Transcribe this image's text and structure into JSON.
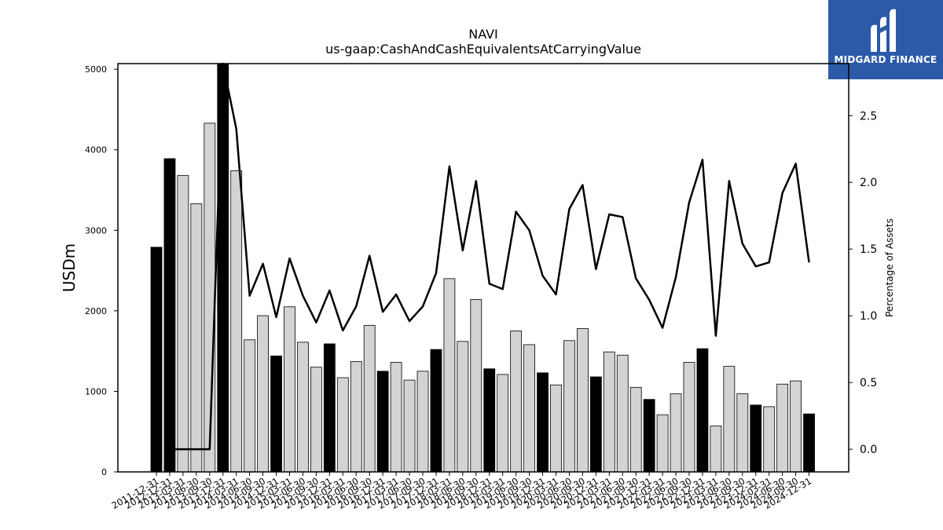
{
  "brand": {
    "name": "MIDGARD FINANCE",
    "color": "#2b5aa8",
    "icon": "midgard-logo-icon"
  },
  "chart_data": {
    "type": "bar",
    "title": "NAVI",
    "subtitle": "us-gaap:CashAndCashEquivalentsAtCarryingValue",
    "ylabel": "USDm",
    "y2label": "Percentage of Assets",
    "ylim": [
      0,
      5070
    ],
    "y2lim": [
      -0.17,
      2.89
    ],
    "yticks": [
      0,
      1000,
      2000,
      3000,
      4000,
      5000
    ],
    "y2ticks": [
      0.0,
      0.5,
      1.0,
      1.5,
      2.0,
      2.5
    ],
    "colors": {
      "q4": "#000000",
      "other": "#d3d3d3",
      "line": "#000000"
    },
    "categories": [
      "2011-12-31",
      "2012-12-31",
      "2013-03-31",
      "2013-06-30",
      "2013-09-30",
      "2013-12-31",
      "2014-03-31",
      "2014-06-30",
      "2014-09-30",
      "2014-12-31",
      "2015-03-31",
      "2015-06-30",
      "2015-09-30",
      "2015-12-31",
      "2016-03-31",
      "2016-06-30",
      "2016-09-30",
      "2016-12-31",
      "2017-03-31",
      "2017-06-30",
      "2017-09-30",
      "2017-12-31",
      "2018-03-31",
      "2018-06-30",
      "2018-09-30",
      "2018-12-31",
      "2019-03-31",
      "2019-06-30",
      "2019-09-30",
      "2019-12-31",
      "2020-03-31",
      "2020-06-30",
      "2020-09-30",
      "2020-12-31",
      "2021-03-31",
      "2021-06-30",
      "2021-09-30",
      "2021-12-31",
      "2022-03-31",
      "2022-06-30",
      "2022-09-30",
      "2022-12-31",
      "2023-03-31",
      "2023-06-30",
      "2023-09-30",
      "2023-12-31",
      "2024-03-31",
      "2024-06-30",
      "2024-09-30",
      "2024-12-31"
    ],
    "series": [
      {
        "name": "",
        "kind": "bar",
        "values": [
          2790,
          3890,
          3680,
          3330,
          4330,
          5100,
          3740,
          1640,
          1940,
          1440,
          2050,
          1610,
          1300,
          1590,
          1170,
          1370,
          1820,
          1250,
          1360,
          1140,
          1250,
          1520,
          2400,
          1620,
          2140,
          1280,
          1210,
          1750,
          1580,
          1230,
          1080,
          1630,
          1780,
          1180,
          1490,
          1450,
          1050,
          900,
          710,
          970,
          1360,
          1530,
          570,
          1310,
          970,
          830,
          810,
          1090,
          1130,
          720
        ],
        "q4": [
          true,
          true,
          false,
          false,
          false,
          true,
          false,
          false,
          false,
          true,
          false,
          false,
          false,
          true,
          false,
          false,
          false,
          true,
          false,
          false,
          false,
          true,
          false,
          false,
          false,
          true,
          false,
          false,
          false,
          true,
          false,
          false,
          false,
          true,
          false,
          false,
          false,
          true,
          false,
          false,
          false,
          true,
          false,
          false,
          false,
          true,
          false,
          false,
          false,
          true
        ]
      },
      {
        "name": "",
        "kind": "line",
        "axis": "right",
        "values": [
          null,
          0.0,
          0.0,
          0.0,
          0.0,
          2.89,
          2.4,
          1.15,
          1.39,
          0.99,
          1.43,
          1.15,
          0.95,
          1.19,
          0.89,
          1.07,
          1.45,
          1.03,
          1.16,
          0.96,
          1.07,
          1.32,
          2.12,
          1.49,
          2.01,
          1.24,
          1.2,
          1.78,
          1.64,
          1.3,
          1.16,
          1.8,
          1.98,
          1.35,
          1.76,
          1.74,
          1.28,
          1.12,
          0.91,
          1.29,
          1.85,
          2.17,
          0.85,
          2.01,
          1.54,
          1.37,
          1.4,
          1.92,
          2.14,
          1.4
        ]
      }
    ]
  }
}
